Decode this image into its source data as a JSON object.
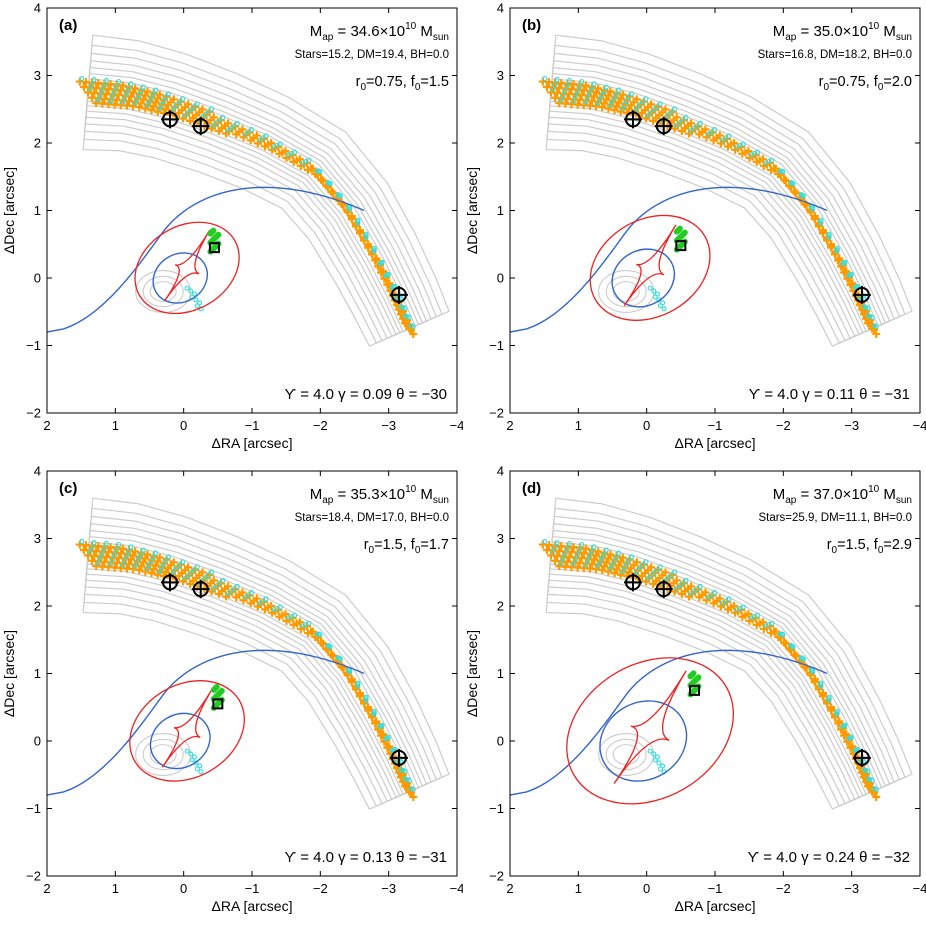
{
  "figure": {
    "xlabel": "ΔRA [arcsec]",
    "ylabel": "ΔDec [arcsec]",
    "xticks": [
      "2",
      "1",
      "0",
      "−1",
      "−2",
      "−3",
      "−4"
    ],
    "yticks": [
      "4",
      "3",
      "2",
      "1",
      "0",
      "−1",
      "−2"
    ]
  },
  "chart_data": [
    {
      "type": "scatter",
      "label": "(a)",
      "xlim": [
        2,
        -4
      ],
      "ylim": [
        -2,
        4
      ],
      "mass_prefix": "M",
      "mass_prefix_sub": "ap",
      "mass_value": " = 34.6×10",
      "mass_exp": "10",
      "mass_unit": " M",
      "mass_unit_sub": "sun",
      "components": "Stars=15.2, DM=19.4, BH=0.0",
      "r0_label": "r",
      "r0_sub": "0",
      "r0_value": "=0.75, f",
      "f0_sub": "0",
      "f0_value": "=1.5",
      "params": "ϒ = 4.0    γ = 0.09    θ = −30",
      "images": [
        [
          0.2,
          2.35
        ],
        [
          -0.25,
          2.25
        ],
        [
          -3.15,
          -0.25
        ]
      ],
      "source": [
        -0.45,
        0.45
      ],
      "critical_scale": 1.0
    },
    {
      "type": "scatter",
      "label": "(b)",
      "xlim": [
        2,
        -4
      ],
      "ylim": [
        -2,
        4
      ],
      "mass_prefix": "M",
      "mass_prefix_sub": "ap",
      "mass_value": " = 35.0×10",
      "mass_exp": "10",
      "mass_unit": " M",
      "mass_unit_sub": "sun",
      "components": "Stars=16.8, DM=18.2, BH=0.0",
      "r0_label": "r",
      "r0_sub": "0",
      "r0_value": "=0.75, f",
      "f0_sub": "0",
      "f0_value": "=2.0",
      "params": "ϒ = 4.0    γ = 0.11    θ = −31",
      "images": [
        [
          0.2,
          2.35
        ],
        [
          -0.25,
          2.25
        ],
        [
          -3.15,
          -0.25
        ]
      ],
      "source": [
        -0.5,
        0.48
      ],
      "critical_scale": 1.15
    },
    {
      "type": "scatter",
      "label": "(c)",
      "xlim": [
        2,
        -4
      ],
      "ylim": [
        -2,
        4
      ],
      "mass_prefix": "M",
      "mass_prefix_sub": "ap",
      "mass_value": " = 35.3×10",
      "mass_exp": "10",
      "mass_unit": " M",
      "mass_unit_sub": "sun",
      "components": "Stars=18.4, DM=17.0, BH=0.0",
      "r0_label": "r",
      "r0_sub": "0",
      "r0_value": "=1.5, f",
      "f0_sub": "0",
      "f0_value": "=1.7",
      "params": "ϒ = 4.0    γ = 0.13    θ = −31",
      "images": [
        [
          0.2,
          2.35
        ],
        [
          -0.25,
          2.25
        ],
        [
          -3.15,
          -0.25
        ]
      ],
      "source": [
        -0.5,
        0.55
      ],
      "critical_scale": 1.1
    },
    {
      "type": "scatter",
      "label": "(d)",
      "xlim": [
        2,
        -4
      ],
      "ylim": [
        -2,
        4
      ],
      "mass_prefix": "M",
      "mass_prefix_sub": "ap",
      "mass_value": " = 37.0×10",
      "mass_exp": "10",
      "mass_unit": " M",
      "mass_unit_sub": "sun",
      "components": "Stars=25.9, DM=11.1, BH=0.0",
      "r0_label": "r",
      "r0_sub": "0",
      "r0_value": "=1.5, f",
      "f0_sub": "0",
      "f0_value": "=2.9",
      "params": "ϒ = 4.0    γ = 0.24    θ = −32",
      "images": [
        [
          0.2,
          2.35
        ],
        [
          -0.25,
          2.25
        ],
        [
          -3.15,
          -0.25
        ]
      ],
      "source": [
        -0.7,
        0.75
      ],
      "critical_scale": 1.6
    }
  ],
  "colors": {
    "contour": "#cccccc",
    "arc_image": "#ff9900",
    "arc_data": "#33dddd",
    "critical": "#3366cc",
    "caustic": "#ee2222",
    "source": "#22cc22",
    "marker": "#000000"
  }
}
